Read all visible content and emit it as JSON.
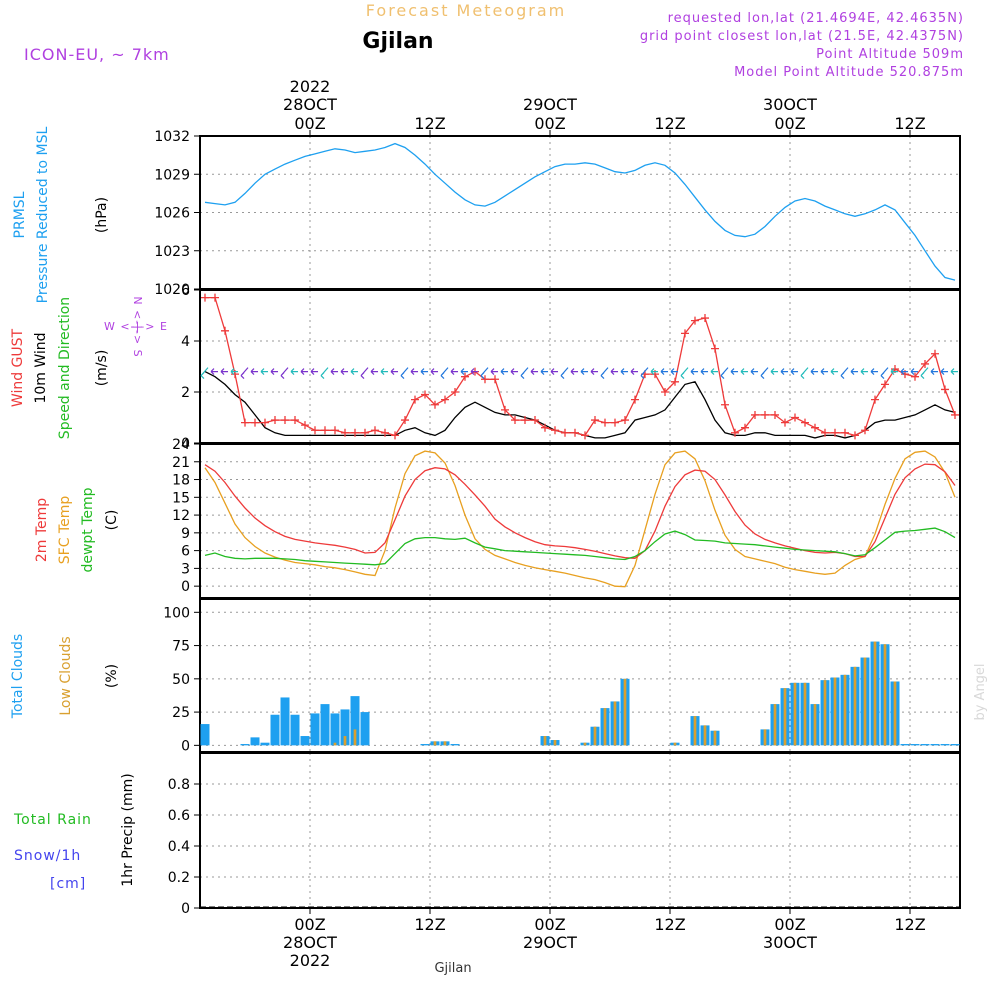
{
  "header": {
    "forecast_title": "Forecast Meteogram",
    "location": "Gjilan",
    "model": "ICON-EU, ~ 7km",
    "requested": "requested lon,lat (21.4694E, 42.4635N)",
    "gridpoint": "grid point closest lon,lat (21.5E, 42.4375N)",
    "point_alt": "Point Altitude 509m",
    "model_alt": "Model Point Altitude 520.875m",
    "footer_location": "Gjilan",
    "watermark": "by Angel"
  },
  "time_axis": {
    "top_year": "2022",
    "ticks": [
      {
        "hour": 0,
        "z": "00Z",
        "date": "28OCT",
        "year": "2022"
      },
      {
        "hour": 12,
        "z": "12Z",
        "date": "",
        "year": ""
      },
      {
        "hour": 24,
        "z": "00Z",
        "date": "29OCT",
        "year": ""
      },
      {
        "hour": 36,
        "z": "12Z",
        "date": "",
        "year": ""
      },
      {
        "hour": 48,
        "z": "00Z",
        "date": "30OCT",
        "year": ""
      },
      {
        "hour": 60,
        "z": "12Z",
        "date": "",
        "year": ""
      }
    ],
    "range_hours": [
      -11,
      65
    ]
  },
  "colors": {
    "pressure": "#1ea0f0",
    "gust": "#ee3a3a",
    "wind": "#000000",
    "winddir": "#22bb22",
    "temp": "#ee3a3a",
    "sfc": "#e8a020",
    "dew": "#22bb22",
    "total_cloud": "#1ea0f0",
    "low_cloud": "#d9a030",
    "rain": "#22bb22",
    "snow": "#4444ee",
    "purple": "#b040e0",
    "title_orange": "#f0c070"
  },
  "panel_labels": {
    "pressure": [
      "PRMSL",
      "Pressure Reduced to MSL",
      "(hPa)"
    ],
    "wind": [
      "Wind GUST",
      "10m Wind",
      "Speed and Direction",
      "(m/s)"
    ],
    "compass": [
      "W <-|-> E",
      "N <-|-> S"
    ],
    "temp": [
      "2m Temp",
      "SFC Temp",
      "dewpt Temp",
      "(C)"
    ],
    "cloud": [
      "Total Clouds",
      "Low Clouds",
      "(%)"
    ],
    "precip": [
      "Total  Rain",
      "Snow/1h",
      "[cm]",
      "1hr Precip (mm)"
    ]
  },
  "chart_data": [
    {
      "type": "line",
      "name": "pressure",
      "ylabel": "(hPa)",
      "ylim": [
        1020,
        1032
      ],
      "yticks": [
        1020,
        1023,
        1026,
        1029,
        1032
      ],
      "x": [
        -10.5,
        -9.5,
        -8.5,
        -7.5,
        -6.5,
        -5.5,
        -4.5,
        -3.5,
        -2.5,
        -1.5,
        -0.5,
        0.5,
        1.5,
        2.5,
        3.5,
        4.5,
        5.5,
        6.5,
        7.5,
        8.5,
        9.5,
        10.5,
        11.5,
        12.5,
        13.5,
        14.5,
        15.5,
        16.5,
        17.5,
        18.5,
        19.5,
        20.5,
        21.5,
        22.5,
        23.5,
        24.5,
        25.5,
        26.5,
        27.5,
        28.5,
        29.5,
        30.5,
        31.5,
        32.5,
        33.5,
        34.5,
        35.5,
        36.5,
        37.5,
        38.5,
        39.5,
        40.5,
        41.5,
        42.5,
        43.5,
        44.5,
        45.5,
        46.5,
        47.5,
        48.5,
        49.5,
        50.5,
        51.5,
        52.5,
        53.5,
        54.5,
        55.5,
        56.5,
        57.5,
        58.5,
        59.5,
        60.5,
        61.5,
        62.5,
        63.5,
        64.5
      ],
      "y": [
        1026.8,
        1026.7,
        1026.6,
        1026.8,
        1027.5,
        1028.3,
        1029.0,
        1029.4,
        1029.8,
        1030.1,
        1030.4,
        1030.6,
        1030.8,
        1031.0,
        1030.9,
        1030.7,
        1030.8,
        1030.9,
        1031.1,
        1031.4,
        1031.1,
        1030.5,
        1029.8,
        1029.0,
        1028.3,
        1027.6,
        1027.0,
        1026.6,
        1026.5,
        1026.8,
        1027.3,
        1027.8,
        1028.3,
        1028.8,
        1029.2,
        1029.6,
        1029.8,
        1029.8,
        1029.9,
        1029.8,
        1029.5,
        1029.2,
        1029.1,
        1029.3,
        1029.7,
        1029.9,
        1029.7,
        1029.1,
        1028.2,
        1027.2,
        1026.2,
        1025.3,
        1024.6,
        1024.2,
        1024.1,
        1024.3,
        1024.9,
        1025.7,
        1026.4,
        1026.9,
        1027.1,
        1026.9,
        1026.5,
        1026.2,
        1025.9,
        1025.7,
        1025.9,
        1026.2,
        1026.6,
        1026.2,
        1025.2,
        1024.2,
        1023.0,
        1021.8,
        1020.9,
        1020.7
      ]
    },
    {
      "type": "line",
      "name": "wind",
      "ylabel": "(m/s)",
      "ylim": [
        0,
        6
      ],
      "yticks": [
        0,
        2,
        4,
        6
      ],
      "x": [
        -10.5,
        -9.5,
        -8.5,
        -7.5,
        -6.5,
        -5.5,
        -4.5,
        -3.5,
        -2.5,
        -1.5,
        -0.5,
        0.5,
        1.5,
        2.5,
        3.5,
        4.5,
        5.5,
        6.5,
        7.5,
        8.5,
        9.5,
        10.5,
        11.5,
        12.5,
        13.5,
        14.5,
        15.5,
        16.5,
        17.5,
        18.5,
        19.5,
        20.5,
        21.5,
        22.5,
        23.5,
        24.5,
        25.5,
        26.5,
        27.5,
        28.5,
        29.5,
        30.5,
        31.5,
        32.5,
        33.5,
        34.5,
        35.5,
        36.5,
        37.5,
        38.5,
        39.5,
        40.5,
        41.5,
        42.5,
        43.5,
        44.5,
        45.5,
        46.5,
        47.5,
        48.5,
        49.5,
        50.5,
        51.5,
        52.5,
        53.5,
        54.5,
        55.5,
        56.5,
        57.5,
        58.5,
        59.5,
        60.5,
        61.5,
        62.5,
        63.5,
        64.5
      ],
      "gust": [
        5.7,
        5.7,
        4.4,
        2.7,
        0.8,
        0.8,
        0.8,
        0.9,
        0.9,
        0.9,
        0.7,
        0.5,
        0.5,
        0.5,
        0.4,
        0.4,
        0.4,
        0.5,
        0.4,
        0.3,
        0.9,
        1.7,
        1.9,
        1.5,
        1.7,
        2.0,
        2.6,
        2.8,
        2.5,
        2.5,
        1.3,
        0.9,
        0.9,
        0.9,
        0.6,
        0.5,
        0.4,
        0.4,
        0.3,
        0.9,
        0.8,
        0.8,
        0.9,
        1.7,
        2.7,
        2.7,
        2.0,
        2.4,
        4.3,
        4.8,
        4.9,
        3.7,
        1.5,
        0.4,
        0.6,
        1.1,
        1.1,
        1.1,
        0.8,
        1.0,
        0.8,
        0.6,
        0.4,
        0.4,
        0.4,
        0.3,
        0.5,
        1.7,
        2.3,
        2.9,
        2.7,
        2.6,
        3.1,
        3.5,
        2.1,
        1.1,
        1.1
      ],
      "speed": [
        2.8,
        2.6,
        2.3,
        1.9,
        1.6,
        1.1,
        0.6,
        0.4,
        0.3,
        0.3,
        0.3,
        0.3,
        0.3,
        0.3,
        0.3,
        0.3,
        0.3,
        0.3,
        0.3,
        0.3,
        0.5,
        0.6,
        0.4,
        0.3,
        0.5,
        1.0,
        1.4,
        1.6,
        1.4,
        1.2,
        1.1,
        1.1,
        1.0,
        0.9,
        0.7,
        0.5,
        0.4,
        0.4,
        0.3,
        0.2,
        0.2,
        0.3,
        0.4,
        0.9,
        1.0,
        1.1,
        1.3,
        1.8,
        2.3,
        2.4,
        1.7,
        0.9,
        0.4,
        0.3,
        0.3,
        0.4,
        0.4,
        0.3,
        0.3,
        0.3,
        0.3,
        0.2,
        0.3,
        0.3,
        0.2,
        0.3,
        0.5,
        0.8,
        0.9,
        0.9,
        1.0,
        1.1,
        1.3,
        1.5,
        1.3,
        1.2,
        0.3
      ],
      "arrows_y": 2.8
    },
    {
      "type": "line",
      "name": "temperature",
      "ylabel": "(C)",
      "ylim": [
        -2,
        24
      ],
      "yticks": [
        0,
        3,
        6,
        9,
        12,
        15,
        18,
        21,
        24
      ],
      "x": [
        -10.5,
        -9.5,
        -8.5,
        -7.5,
        -6.5,
        -5.5,
        -4.5,
        -3.5,
        -2.5,
        -1.5,
        -0.5,
        0.5,
        1.5,
        2.5,
        3.5,
        4.5,
        5.5,
        6.5,
        7.5,
        8.5,
        9.5,
        10.5,
        11.5,
        12.5,
        13.5,
        14.5,
        15.5,
        16.5,
        17.5,
        18.5,
        19.5,
        20.5,
        21.5,
        22.5,
        23.5,
        24.5,
        25.5,
        26.5,
        27.5,
        28.5,
        29.5,
        30.5,
        31.5,
        32.5,
        33.5,
        34.5,
        35.5,
        36.5,
        37.5,
        38.5,
        39.5,
        40.5,
        41.5,
        42.5,
        43.5,
        44.5,
        45.5,
        46.5,
        47.5,
        48.5,
        49.5,
        50.5,
        51.5,
        52.5,
        53.5,
        54.5,
        55.5,
        56.5,
        57.5,
        58.5,
        59.5,
        60.5,
        61.5,
        62.5,
        63.5,
        64.5
      ],
      "temp2m": [
        20.5,
        19.4,
        17.5,
        15.2,
        13.2,
        11.5,
        10.2,
        9.2,
        8.4,
        7.9,
        7.6,
        7.3,
        7.1,
        6.9,
        6.6,
        6.2,
        5.6,
        5.7,
        7.3,
        11.2,
        15.2,
        18.0,
        19.5,
        20.0,
        19.8,
        18.8,
        17.2,
        15.4,
        13.5,
        11.3,
        10.0,
        9.0,
        8.2,
        7.5,
        7.0,
        6.8,
        6.7,
        6.5,
        6.2,
        5.9,
        5.5,
        5.1,
        4.8,
        4.7,
        6.0,
        9.3,
        13.5,
        16.8,
        18.8,
        19.6,
        19.4,
        18.0,
        15.4,
        12.6,
        10.3,
        8.8,
        7.9,
        7.3,
        6.8,
        6.4,
        6.0,
        5.7,
        5.6,
        5.7,
        5.5,
        5.0,
        5.0,
        7.5,
        11.5,
        15.5,
        18.3,
        19.8,
        20.6,
        20.5,
        19.3,
        17.0,
        13.8
      ],
      "sfc": [
        20.0,
        17.5,
        14.0,
        10.5,
        8.2,
        6.7,
        5.6,
        4.9,
        4.4,
        4.0,
        3.8,
        3.6,
        3.3,
        3.1,
        2.8,
        2.4,
        2.0,
        1.8,
        6.0,
        13.2,
        19.0,
        22.0,
        22.8,
        22.5,
        20.8,
        17.0,
        12.0,
        8.0,
        6.2,
        5.2,
        4.6,
        4.0,
        3.5,
        3.1,
        2.8,
        2.5,
        2.2,
        1.8,
        1.4,
        1.1,
        0.6,
        0.0,
        -0.1,
        3.5,
        9.5,
        15.5,
        20.5,
        22.5,
        22.8,
        21.5,
        17.8,
        12.8,
        8.6,
        6.2,
        5.0,
        4.6,
        4.2,
        3.8,
        3.2,
        2.8,
        2.5,
        2.2,
        2.0,
        2.2,
        3.5,
        4.5,
        5.0,
        8.8,
        13.8,
        18.2,
        21.5,
        22.6,
        22.8,
        21.8,
        19.2,
        15.0,
        11.0
      ],
      "dew": [
        5.2,
        5.6,
        5.0,
        4.7,
        4.6,
        4.7,
        4.7,
        4.7,
        4.6,
        4.5,
        4.3,
        4.2,
        4.1,
        4.0,
        3.9,
        3.8,
        3.7,
        3.6,
        3.8,
        5.5,
        7.2,
        8.0,
        8.2,
        8.2,
        8.0,
        7.9,
        8.1,
        7.3,
        6.6,
        6.3,
        6.0,
        5.9,
        5.8,
        5.7,
        5.6,
        5.5,
        5.4,
        5.3,
        5.2,
        5.0,
        4.8,
        4.6,
        4.5,
        5.0,
        6.0,
        7.5,
        8.8,
        9.3,
        8.7,
        7.8,
        7.7,
        7.6,
        7.3,
        7.2,
        7.1,
        7.0,
        6.8,
        6.6,
        6.4,
        6.2,
        6.1,
        6.0,
        5.9,
        5.8,
        5.5,
        5.1,
        5.3,
        6.5,
        7.8,
        9.1,
        9.3,
        9.4,
        9.6,
        9.8,
        9.2,
        8.2,
        7.6
      ]
    },
    {
      "type": "bar",
      "name": "clouds",
      "ylabel": "(%)",
      "ylim": [
        -5,
        110
      ],
      "yticks": [
        0,
        25,
        50,
        75,
        100
      ],
      "x": [
        -10.5,
        -9.5,
        -8.5,
        -7.5,
        -6.5,
        -5.5,
        -4.5,
        -3.5,
        -2.5,
        -1.5,
        -0.5,
        0.5,
        1.5,
        2.5,
        3.5,
        4.5,
        5.5,
        6.5,
        7.5,
        8.5,
        9.5,
        10.5,
        11.5,
        12.5,
        13.5,
        14.5,
        15.5,
        16.5,
        17.5,
        18.5,
        19.5,
        20.5,
        21.5,
        22.5,
        23.5,
        24.5,
        25.5,
        26.5,
        27.5,
        28.5,
        29.5,
        30.5,
        31.5,
        32.5,
        33.5,
        34.5,
        35.5,
        36.5,
        37.5,
        38.5,
        39.5,
        40.5,
        41.5,
        42.5,
        43.5,
        44.5,
        45.5,
        46.5,
        47.5,
        48.5,
        49.5,
        50.5,
        51.5,
        52.5,
        53.5,
        54.5,
        55.5,
        56.5,
        57.5,
        58.5,
        59.5,
        60.5,
        61.5,
        62.5,
        63.5,
        64.5
      ],
      "total": [
        16,
        0,
        0,
        0,
        1,
        6,
        2,
        23,
        36,
        23,
        7,
        24,
        31,
        24,
        27,
        37,
        25,
        0,
        0,
        0,
        0,
        0,
        1,
        3,
        3,
        1,
        0,
        0,
        0,
        0,
        0,
        0,
        0,
        0,
        7,
        4,
        0,
        0,
        2,
        14,
        28,
        33,
        50,
        0,
        0,
        0,
        0,
        2,
        0,
        22,
        15,
        11,
        0,
        0,
        0,
        0,
        12,
        31,
        43,
        47,
        47,
        31,
        49,
        51,
        53,
        59,
        66,
        78,
        76,
        48,
        1,
        1,
        1,
        1,
        1,
        1
      ],
      "low": [
        0,
        0,
        0,
        0,
        0,
        0,
        0,
        0,
        0,
        0,
        0,
        0,
        0,
        2,
        7,
        12,
        0,
        0,
        0,
        0,
        0,
        0,
        0,
        3,
        3,
        0,
        0,
        0,
        0,
        0,
        0,
        0,
        0,
        0,
        7,
        4,
        0,
        0,
        2,
        14,
        28,
        33,
        50,
        0,
        0,
        0,
        0,
        2,
        0,
        22,
        15,
        11,
        0,
        0,
        0,
        0,
        12,
        31,
        43,
        47,
        47,
        31,
        49,
        51,
        53,
        59,
        66,
        78,
        76,
        48,
        0,
        0,
        0,
        0,
        0,
        0
      ]
    },
    {
      "type": "bar",
      "name": "precipitation",
      "ylabel": "1hr Precip (mm)",
      "ylim": [
        0,
        1
      ],
      "yticks": [
        0,
        0.2,
        0.4,
        0.6,
        0.8
      ],
      "rain": [],
      "snow": []
    }
  ]
}
